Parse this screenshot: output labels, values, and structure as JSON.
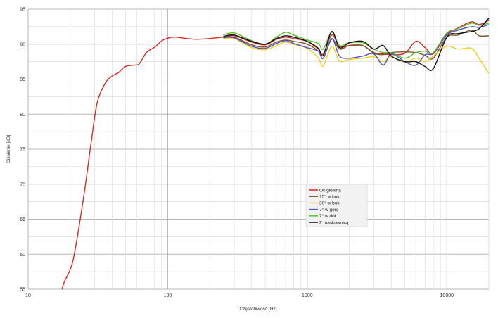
{
  "chart_data": {
    "type": "line",
    "xlabel": "Częstotliwość [Hz]",
    "ylabel": "Ciśnienie [dB]",
    "xscale": "log",
    "xlim": [
      10,
      20000
    ],
    "ylim": [
      55,
      95
    ],
    "yticks": [
      55,
      60,
      65,
      70,
      75,
      80,
      85,
      90,
      95
    ],
    "xticks": [
      10,
      100,
      1000,
      10000
    ],
    "grid": true,
    "legend_position": "center-right",
    "series": [
      {
        "name": "Oś główna",
        "color": "#d42a2a",
        "x": [
          17.5,
          18.2,
          20,
          21.6,
          25.3,
          28.4,
          31.2,
          35.9,
          40.4,
          44.2,
          49.7,
          57,
          62.5,
          70.4,
          81,
          91,
          102,
          114,
          162,
          250,
          300,
          400,
          500,
          600,
          700,
          800,
          1000,
          1200,
          1300,
          1500,
          1700,
          2000,
          2500,
          3000,
          3500,
          4000,
          5000,
          6000,
          7000,
          8000,
          10000,
          12000,
          15000,
          17000,
          20000
        ],
        "y": [
          55,
          56.1,
          57.8,
          60.4,
          68.9,
          76.2,
          81.6,
          84.5,
          85.5,
          85.9,
          86.8,
          87.0,
          87.2,
          88.8,
          89.6,
          90.5,
          90.9,
          91.0,
          90.7,
          91.0,
          91.2,
          90.3,
          89.9,
          90.7,
          91.0,
          90.8,
          90.4,
          89.3,
          88.6,
          91.3,
          89.7,
          89.8,
          89.8,
          88.8,
          88.6,
          88.5,
          88.7,
          90.4,
          89.5,
          88.6,
          91.4,
          92.3,
          93.2,
          92.8,
          93.4
        ]
      },
      {
        "name": "15° w bok",
        "color": "#7a5a2a",
        "x": [
          250,
          300,
          400,
          500,
          600,
          700,
          800,
          1000,
          1200,
          1300,
          1500,
          1700,
          2000,
          2500,
          3000,
          3500,
          4000,
          5000,
          6000,
          7000,
          8000,
          10000,
          12000,
          15000,
          17000,
          20000
        ],
        "y": [
          91.0,
          91.0,
          89.9,
          89.6,
          90.3,
          90.6,
          90.4,
          90.0,
          89.0,
          88.0,
          90.7,
          89.3,
          89.8,
          89.8,
          88.7,
          88.5,
          88.8,
          88.9,
          88.8,
          88.4,
          88.0,
          91.0,
          91.3,
          92.0,
          91.2,
          91.2
        ]
      },
      {
        "name": "30° w bok",
        "color": "#f0d020",
        "x": [
          250,
          300,
          400,
          500,
          600,
          700,
          800,
          1000,
          1200,
          1300,
          1500,
          1700,
          2000,
          2500,
          3000,
          3500,
          4000,
          5000,
          6000,
          7000,
          8000,
          10000,
          12000,
          15000,
          17000,
          20000
        ],
        "y": [
          90.8,
          90.8,
          89.5,
          89.2,
          89.8,
          90.3,
          90.0,
          89.4,
          88.0,
          86.9,
          89.7,
          87.6,
          87.8,
          88.0,
          88.2,
          87.5,
          88.2,
          87.4,
          88.0,
          87.5,
          88.3,
          89.7,
          89.3,
          89.4,
          88.0,
          85.8
        ]
      },
      {
        "name": "7° w górę",
        "color": "#5050c0",
        "x": [
          250,
          300,
          400,
          500,
          600,
          700,
          800,
          1000,
          1200,
          1300,
          1500,
          1700,
          2000,
          2500,
          3000,
          3500,
          4000,
          5000,
          6000,
          7000,
          8000,
          10000,
          12000,
          15000,
          17000,
          20000
        ],
        "y": [
          90.9,
          90.9,
          89.7,
          89.4,
          90.1,
          90.5,
          90.1,
          89.5,
          89.0,
          88.0,
          90.8,
          88.3,
          88.0,
          88.3,
          88.6,
          87.0,
          88.6,
          87.5,
          87.0,
          88.5,
          88.7,
          91.3,
          92.0,
          92.5,
          92.4,
          92.8
        ]
      },
      {
        "name": "7° w dół",
        "color": "#5cc030",
        "x": [
          250,
          300,
          400,
          500,
          600,
          700,
          800,
          1000,
          1200,
          1300,
          1500,
          1700,
          2000,
          2500,
          3000,
          3500,
          4000,
          5000,
          6000,
          7000,
          8000,
          10000,
          12000,
          15000,
          17000,
          20000
        ],
        "y": [
          91.3,
          91.6,
          90.5,
          90.0,
          91.0,
          91.7,
          91.3,
          90.6,
          90.1,
          89.3,
          91.7,
          89.8,
          90.2,
          90.2,
          89.3,
          88.8,
          88.8,
          88.0,
          88.8,
          89.0,
          88.8,
          91.6,
          92.2,
          93.0,
          92.7,
          93.0
        ]
      },
      {
        "name": "Z maskownicą",
        "color": "#111111",
        "x": [
          250,
          300,
          400,
          500,
          600,
          700,
          800,
          1000,
          1200,
          1300,
          1500,
          1700,
          2000,
          2500,
          3000,
          3500,
          4000,
          5000,
          6000,
          7000,
          8000,
          10000,
          12000,
          15000,
          17000,
          20000
        ],
        "y": [
          91.1,
          91.3,
          90.4,
          90.0,
          90.8,
          91.2,
          91.0,
          90.4,
          89.4,
          88.4,
          91.8,
          89.5,
          90.2,
          90.4,
          89.3,
          89.8,
          88.3,
          87.5,
          87.5,
          86.8,
          86.5,
          91.0,
          91.5,
          91.8,
          92.2,
          93.7
        ]
      }
    ]
  }
}
